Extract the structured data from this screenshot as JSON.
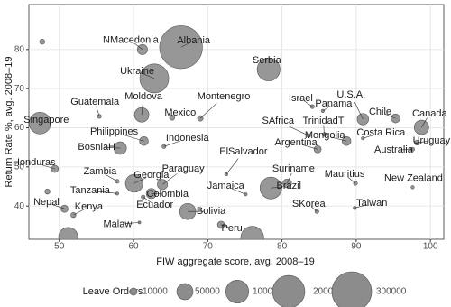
{
  "chart_data": {
    "type": "scatter",
    "x_label": "FIW aggregate score, avg. 2008–19",
    "y_label": "Return Rate %, avg. 2008–19",
    "categories": [
      null,
      "Albania",
      "NMacedonia",
      "Serbia",
      "Ukraine",
      "Guatemala",
      "Moldova",
      "Montenegro",
      "Mexico",
      "Israel",
      "Panama",
      "U.S.A.",
      "Chile",
      "Canada",
      "Singapore",
      "Philippines",
      "Indonesia",
      "SAfrica",
      "TrinidadT",
      "Costa Rica",
      "Mongolia",
      "Argentina",
      "Uruguay",
      "Australia",
      "BosniaH",
      "Honduras",
      "ElSalvador",
      "Zambia",
      "Georgia",
      "Paraguay",
      "Suriname",
      "Mauritius",
      "New Zealand",
      "Brazil",
      "Tanzania",
      "Colombia",
      "Jamaica",
      null,
      "Ecuador",
      "Nepal",
      "Kenya",
      "SKorea",
      "Taiwan",
      "Bolivia",
      "Malawi",
      "Peru",
      null,
      null
    ],
    "x": [
      47.7,
      66.4,
      61.2,
      78.2,
      62.8,
      55.4,
      61.1,
      69.0,
      65.2,
      84.1,
      85.5,
      90.9,
      95.3,
      98.8,
      47.4,
      61.4,
      64.1,
      83.6,
      85.7,
      90.9,
      88.7,
      84.8,
      98.2,
      97.6,
      58.2,
      49.4,
      72.5,
      57.8,
      60.1,
      63.9,
      80.7,
      89.9,
      97.6,
      78.5,
      57.8,
      62.4,
      75.1,
      48.4,
      61.3,
      50.7,
      51.9,
      84.7,
      89.8,
      67.3,
      60.8,
      71.8,
      51.2,
      76.0
    ],
    "values": [
      82.0,
      80.6,
      80.0,
      74.9,
      72.6,
      62.9,
      63.3,
      62.4,
      62.6,
      65.4,
      64.3,
      62.2,
      62.4,
      60.1,
      61.2,
      56.6,
      55.2,
      58.0,
      58.3,
      57.3,
      56.6,
      54.5,
      56.2,
      54.5,
      54.8,
      49.5,
      48.1,
      46.3,
      45.8,
      45.5,
      45.8,
      45.8,
      44.8,
      44.6,
      43.2,
      43.2,
      43.0,
      43.7,
      42.3,
      39.3,
      37.7,
      38.6,
      39.5,
      38.6,
      35.8,
      35.2,
      32.1,
      31.9
    ],
    "sizes": [
      5000,
      350000,
      20000,
      100000,
      160000,
      3000,
      40000,
      6000,
      5000,
      3000,
      2000,
      25000,
      15000,
      40000,
      90000,
      15000,
      3000,
      3000,
      3000,
      2000,
      15000,
      10000,
      5000,
      3000,
      30000,
      10000,
      2000,
      3000,
      60000,
      20000,
      15000,
      3000,
      2000,
      90000,
      2000,
      20000,
      2000,
      5000,
      3000,
      10000,
      5000,
      3000,
      2000,
      50000,
      1500,
      10000,
      70000,
      100000
    ],
    "color": "#8c8c8c",
    "xlim": [
      45.9,
      101.8
    ],
    "ylim": [
      31.5,
      91.5
    ],
    "xticks": [
      50,
      60,
      70,
      80,
      90,
      100
    ],
    "yticks": [
      40,
      50,
      60,
      70,
      80
    ],
    "grid": true,
    "size_legend": {
      "title": "Leave Orders",
      "values": [
        10000,
        50000,
        100000,
        200000,
        300000
      ]
    }
  }
}
